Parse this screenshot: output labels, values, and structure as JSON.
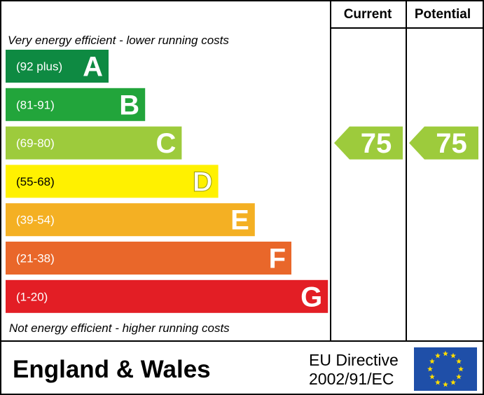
{
  "header": {
    "current_label": "Current",
    "potential_label": "Potential"
  },
  "chart_data": {
    "type": "bar",
    "top_note": "Very energy efficient - lower running costs",
    "bottom_note": "Not energy efficient - higher running costs",
    "bands": [
      {
        "letter": "A",
        "range": "(92 plus)",
        "color": "#0e8a42"
      },
      {
        "letter": "B",
        "range": "(81-91)",
        "color": "#22a53b"
      },
      {
        "letter": "C",
        "range": "(69-80)",
        "color": "#9dcb3c"
      },
      {
        "letter": "D",
        "range": "(55-68)",
        "color": "#fff100"
      },
      {
        "letter": "E",
        "range": "(39-54)",
        "color": "#f4b023"
      },
      {
        "letter": "F",
        "range": "(21-38)",
        "color": "#e9672a"
      },
      {
        "letter": "G",
        "range": "(1-20)",
        "color": "#e31e25"
      }
    ],
    "current": {
      "value": "75",
      "band": "C",
      "color": "#9dcb3c"
    },
    "potential": {
      "value": "75",
      "band": "C",
      "color": "#9dcb3c"
    }
  },
  "footer": {
    "region": "England & Wales",
    "directive_line1": "EU Directive",
    "directive_line2": "2002/91/EC"
  },
  "colors": {
    "border": "#000000",
    "eu_flag_blue": "#1f4fa8",
    "eu_flag_star": "#ffdd00"
  },
  "icons": {
    "eu_flag": "eu-flag-icon"
  }
}
